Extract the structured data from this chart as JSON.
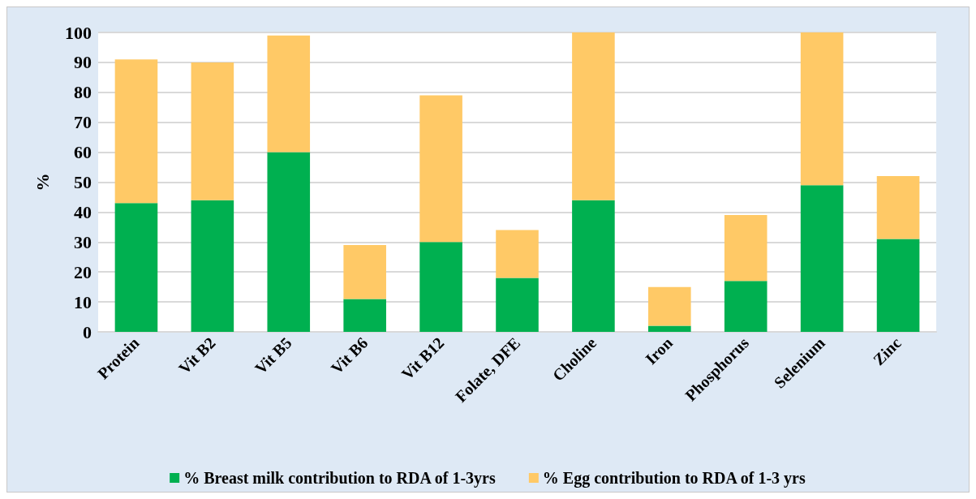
{
  "chart_data": {
    "type": "bar",
    "ylabel": "%",
    "stacked": true,
    "categories": [
      "Protein",
      "Vit B2",
      "Vit B5",
      "Vit B6",
      "Vit B12",
      "Folate, DFE",
      "Choline",
      "Iron",
      "Phosphorus",
      "Selenium",
      "Zinc"
    ],
    "series": [
      {
        "name": "% Breast milk contribution to RDA of 1-3yrs",
        "color": "#00b050",
        "values": [
          43,
          44,
          60,
          11,
          30,
          18,
          44,
          2,
          17,
          49,
          31
        ]
      },
      {
        "name": "% Egg contribution to RDA of 1-3 yrs",
        "color": "#ffc966",
        "values": [
          48,
          46,
          39,
          18,
          49,
          16,
          56,
          13,
          22,
          51,
          21
        ]
      }
    ],
    "ylim": [
      0,
      100
    ],
    "yticks": [
      0,
      10,
      20,
      30,
      40,
      50,
      60,
      70,
      80,
      90,
      100
    ],
    "grid": "y",
    "legend": "bottom"
  }
}
